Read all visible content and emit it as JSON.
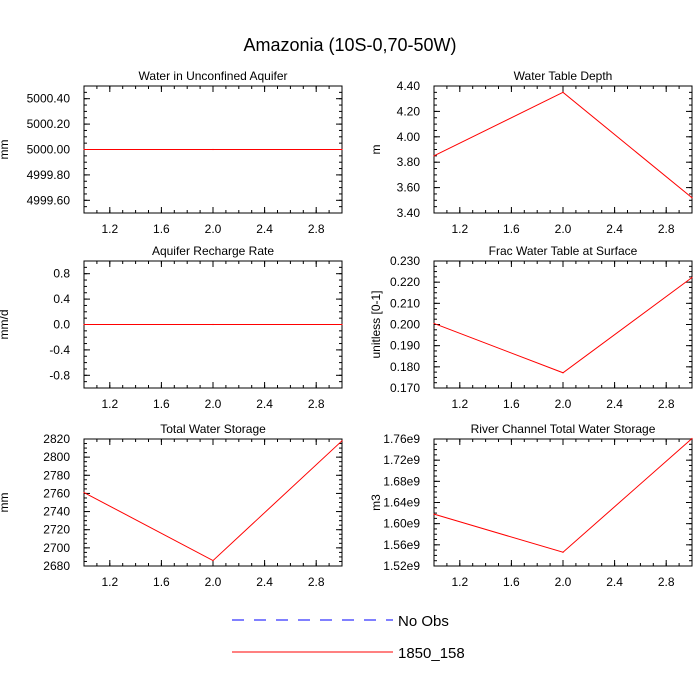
{
  "title": "Amazonia (10S-0,70-50W)",
  "colors": {
    "model": "#ff0000",
    "obs": "#0000ff",
    "axis": "#000000"
  },
  "legend": {
    "items": [
      {
        "label": "No Obs",
        "color": "#0000ff",
        "style": "dashed"
      },
      {
        "label": "1850_158",
        "color": "#ff0000",
        "style": "solid"
      }
    ]
  },
  "chart_data": [
    {
      "type": "line",
      "title": "Water in Unconfined Aquifer",
      "ylabel": "mm",
      "xlim": [
        1,
        3
      ],
      "ylim": [
        4999.5,
        5000.5
      ],
      "xticks": [
        1.2,
        1.6,
        2.0,
        2.4,
        2.8
      ],
      "xtick_labels": [
        "1.2",
        "1.6",
        "2.0",
        "2.4",
        "2.8"
      ],
      "yticks": [
        4999.6,
        4999.8,
        5000.0,
        5000.2,
        5000.4
      ],
      "ytick_labels": [
        "4999.60",
        "4999.80",
        "5000.00",
        "5000.20",
        "5000.40"
      ],
      "series": [
        {
          "name": "1850_158",
          "x": [
            1,
            2,
            3
          ],
          "values": [
            5000.0,
            5000.0,
            5000.0
          ]
        }
      ]
    },
    {
      "type": "line",
      "title": "Water Table Depth",
      "ylabel": "m",
      "xlim": [
        1,
        3
      ],
      "ylim": [
        3.4,
        4.4
      ],
      "xticks": [
        1.2,
        1.6,
        2.0,
        2.4,
        2.8
      ],
      "xtick_labels": [
        "1.2",
        "1.6",
        "2.0",
        "2.4",
        "2.8"
      ],
      "yticks": [
        3.4,
        3.6,
        3.8,
        4.0,
        4.2,
        4.4
      ],
      "ytick_labels": [
        "3.40",
        "3.60",
        "3.80",
        "4.00",
        "4.20",
        "4.40"
      ],
      "series": [
        {
          "name": "1850_158",
          "x": [
            1,
            2,
            3
          ],
          "values": [
            3.85,
            4.35,
            3.52
          ]
        }
      ]
    },
    {
      "type": "line",
      "title": "Aquifer Recharge Rate",
      "ylabel": "mm/d",
      "xlim": [
        1,
        3
      ],
      "ylim": [
        -1,
        1
      ],
      "xticks": [
        1.2,
        1.6,
        2.0,
        2.4,
        2.8
      ],
      "xtick_labels": [
        "1.2",
        "1.6",
        "2.0",
        "2.4",
        "2.8"
      ],
      "yticks": [
        -0.8,
        -0.4,
        0.0,
        0.4,
        0.8
      ],
      "ytick_labels": [
        "-0.8",
        "-0.4",
        "0.0",
        "0.4",
        "0.8"
      ],
      "series": [
        {
          "name": "1850_158",
          "x": [
            1,
            2,
            3
          ],
          "values": [
            0.0,
            0.0,
            0.0
          ]
        }
      ]
    },
    {
      "type": "line",
      "title": "Frac Water Table at Surface",
      "ylabel": "unitless [0-1]",
      "xlim": [
        1,
        3
      ],
      "ylim": [
        0.17,
        0.23
      ],
      "xticks": [
        1.2,
        1.6,
        2.0,
        2.4,
        2.8
      ],
      "xtick_labels": [
        "1.2",
        "1.6",
        "2.0",
        "2.4",
        "2.8"
      ],
      "yticks": [
        0.17,
        0.18,
        0.19,
        0.2,
        0.21,
        0.22,
        0.23
      ],
      "ytick_labels": [
        "0.170",
        "0.180",
        "0.190",
        "0.200",
        "0.210",
        "0.220",
        "0.230"
      ],
      "series": [
        {
          "name": "1850_158",
          "x": [
            1,
            2,
            3
          ],
          "values": [
            0.2005,
            0.1772,
            0.2222
          ]
        }
      ]
    },
    {
      "type": "line",
      "title": "Total Water Storage",
      "ylabel": "mm",
      "xlim": [
        1,
        3
      ],
      "ylim": [
        2680,
        2820
      ],
      "xticks": [
        1.2,
        1.6,
        2.0,
        2.4,
        2.8
      ],
      "xtick_labels": [
        "1.2",
        "1.6",
        "2.0",
        "2.4",
        "2.8"
      ],
      "yticks": [
        2680,
        2700,
        2720,
        2740,
        2760,
        2780,
        2800,
        2820
      ],
      "ytick_labels": [
        "2680",
        "2700",
        "2720",
        "2740",
        "2760",
        "2780",
        "2800",
        "2820"
      ],
      "series": [
        {
          "name": "1850_158",
          "x": [
            1,
            2,
            3
          ],
          "values": [
            2761,
            2686,
            2818
          ]
        }
      ]
    },
    {
      "type": "line",
      "title": "River Channel Total Water Storage",
      "ylabel": "m3",
      "xlim": [
        1,
        3
      ],
      "ylim": [
        1520000000.0,
        1760000000.0
      ],
      "xticks": [
        1.2,
        1.6,
        2.0,
        2.4,
        2.8
      ],
      "xtick_labels": [
        "1.2",
        "1.6",
        "2.0",
        "2.4",
        "2.8"
      ],
      "yticks": [
        1520000000.0,
        1560000000.0,
        1600000000.0,
        1640000000.0,
        1680000000.0,
        1720000000.0,
        1760000000.0
      ],
      "ytick_labels": [
        "1.52e9",
        "1.56e9",
        "1.60e9",
        "1.64e9",
        "1.68e9",
        "1.72e9",
        "1.76e9"
      ],
      "series": [
        {
          "name": "1850_158",
          "x": [
            1,
            2,
            3
          ],
          "values": [
            1618000000.0,
            1546000000.0,
            1761000000.0
          ]
        }
      ]
    }
  ]
}
